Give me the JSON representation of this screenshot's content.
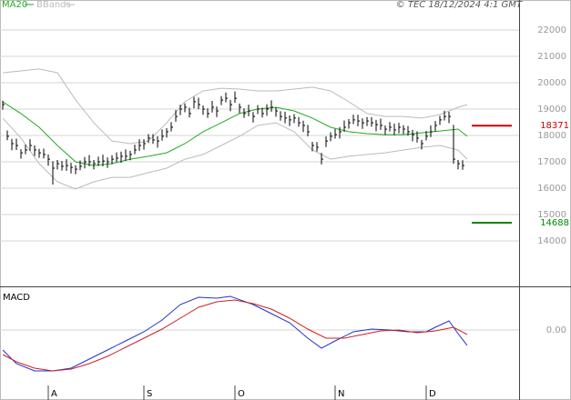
{
  "header": {
    "credit": "© TEC 18/12/2024 4:1 GMT"
  },
  "chart_data": [
    {
      "type": "ohlc",
      "color": "#000000",
      "grid": true,
      "xlim": [
        -0.6,
        113.4
      ],
      "ylim": [
        12276,
        23138
      ],
      "yticks": [
        14000,
        15000,
        16000,
        17000,
        18000,
        19000,
        20000,
        21000,
        22000
      ],
      "close": [
        19170,
        17970,
        17690,
        17620,
        17340,
        17450,
        17620,
        17450,
        17340,
        17280,
        17100,
        16760,
        16930,
        16830,
        16860,
        16790,
        16720,
        16830,
        17000,
        17000,
        16930,
        17000,
        17030,
        17000,
        17100,
        17140,
        17210,
        17210,
        17280,
        17450,
        17620,
        17690,
        17900,
        17830,
        17790,
        17970,
        18140,
        18310,
        18720,
        19000,
        19070,
        18830,
        19280,
        19170,
        19000,
        18830,
        19070,
        18930,
        19340,
        19410,
        19170,
        19410,
        19070,
        18830,
        18930,
        18720,
        19000,
        18830,
        19000,
        19070,
        18930,
        18720,
        18660,
        18590,
        18660,
        18480,
        18380,
        18140,
        17620,
        17550,
        17100,
        17790,
        17970,
        18030,
        18140,
        18310,
        18480,
        18590,
        18550,
        18480,
        18550,
        18480,
        18410,
        18380,
        18240,
        18310,
        18210,
        18310,
        18240,
        18140,
        18030,
        17900,
        17690,
        17970,
        18140,
        18380,
        18590,
        18720,
        18720,
        17100,
        16930,
        16860
      ],
      "high": [
        19320,
        18190,
        17870,
        17880,
        17480,
        17650,
        17860,
        17620,
        17490,
        17500,
        17280,
        17020,
        17070,
        17030,
        17100,
        16960,
        16870,
        17050,
        17180,
        17260,
        17070,
        17200,
        17270,
        17170,
        17250,
        17360,
        17390,
        17470,
        17420,
        17650,
        17860,
        17860,
        18050,
        18050,
        17970,
        18230,
        18280,
        18510,
        18960,
        19170,
        19220,
        19050,
        19460,
        19430,
        19140,
        19030,
        19310,
        19100,
        19490,
        19630,
        19350,
        19670,
        19210,
        19030,
        19170,
        18890,
        19150,
        19050,
        19180,
        19330,
        19070,
        18920,
        18900,
        18760,
        18810,
        18700,
        18560,
        18400,
        17760,
        17750,
        17340,
        17960,
        18120,
        18250,
        18320,
        18570,
        18620,
        18790,
        18790,
        18650,
        18700,
        18700,
        18590,
        18640,
        18380,
        18510,
        18450,
        18480,
        18390,
        18360,
        18210,
        18160,
        17830,
        18170,
        18380,
        18550,
        18740,
        18940,
        18900,
        18400,
        17070,
        17060
      ],
      "low": [
        18980,
        17820,
        17440,
        17450,
        17120,
        17290,
        17420,
        17220,
        17150,
        17130,
        16850,
        16140,
        16710,
        16670,
        16660,
        16560,
        16530,
        16680,
        16750,
        16830,
        16710,
        16840,
        16830,
        16770,
        16910,
        16990,
        16960,
        17040,
        17060,
        17290,
        17420,
        17460,
        17710,
        17680,
        17540,
        17800,
        17920,
        18150,
        18520,
        18770,
        18880,
        18680,
        19030,
        19000,
        18780,
        18670,
        18870,
        18700,
        19150,
        19260,
        18920,
        19240,
        18850,
        18670,
        18730,
        18490,
        18810,
        18680,
        18750,
        18900,
        18710,
        18560,
        18460,
        18360,
        18470,
        18330,
        18130,
        17970,
        17400,
        17390,
        16900,
        17560,
        17780,
        17880,
        17890,
        18140,
        18260,
        18430,
        18350,
        18250,
        18360,
        18330,
        18160,
        18210,
        18020,
        18150,
        18010,
        18080,
        18050,
        17990,
        17780,
        17730,
        17470,
        17810,
        17940,
        18150,
        18400,
        18570,
        18470,
        16930,
        16710,
        16700
      ],
      "series": [
        {
          "name": "MA20",
          "type": "line",
          "color": "#22aa22",
          "x": [
            0,
            4,
            8,
            12,
            16,
            20,
            24,
            28,
            32,
            36,
            40,
            44,
            48,
            52,
            56,
            60,
            64,
            68,
            72,
            76,
            80,
            84,
            88,
            92,
            96,
            100,
            102
          ],
          "values": [
            19280,
            18830,
            18310,
            17620,
            17000,
            16860,
            16930,
            17100,
            17210,
            17340,
            17690,
            18140,
            18480,
            18830,
            19000,
            19070,
            18930,
            18660,
            18310,
            18140,
            18070,
            18030,
            18030,
            18100,
            18170,
            18240,
            17970
          ]
        },
        {
          "name": "BBands",
          "type": "band",
          "color": "#bbbbbb",
          "x": [
            0,
            4,
            8,
            12,
            16,
            20,
            24,
            28,
            32,
            36,
            40,
            44,
            48,
            52,
            56,
            60,
            64,
            68,
            72,
            76,
            80,
            84,
            88,
            92,
            96,
            100,
            102
          ],
          "values": [
            20380,
            20450,
            20520,
            20380,
            19350,
            18480,
            17790,
            17690,
            17790,
            18480,
            19280,
            19690,
            19790,
            19760,
            19690,
            19690,
            19760,
            19830,
            19690,
            19280,
            18830,
            18720,
            18720,
            18660,
            18790,
            19070,
            19170
          ],
          "lower": [
            18660,
            17900,
            16930,
            16240,
            15970,
            16240,
            16410,
            16410,
            16590,
            16760,
            17100,
            17280,
            17620,
            17970,
            18380,
            18480,
            18140,
            17450,
            17100,
            17210,
            17280,
            17340,
            17450,
            17550,
            17620,
            17450,
            17100
          ]
        }
      ],
      "levels": [
        {
          "value": 18371,
          "color": "#cc0000"
        },
        {
          "value": 14688,
          "color": "#008800"
        }
      ]
    },
    {
      "type": "line",
      "title": "MACD",
      "xlim": [
        -0.6,
        113.4
      ],
      "ylim": [
        -77,
        47
      ],
      "yticks": [
        {
          "value": 0,
          "label": "0.00"
        }
      ],
      "xticks": [
        {
          "value": 10,
          "label": "A"
        },
        {
          "value": 31,
          "label": "S"
        },
        {
          "value": 51,
          "label": "O"
        },
        {
          "value": 73,
          "label": "N"
        },
        {
          "value": 93,
          "label": "D"
        }
      ],
      "series": [
        {
          "color": "#2233cc",
          "x": [
            0,
            3,
            7,
            11,
            15,
            19,
            23,
            27,
            31,
            35,
            39,
            43,
            47,
            50,
            55,
            59,
            63,
            67,
            70,
            73,
            77,
            81,
            85,
            89,
            93,
            95,
            98,
            100,
            102
          ],
          "values": [
            -22,
            -37,
            -45,
            -45,
            -42,
            -32,
            -22,
            -12,
            -2,
            11,
            28,
            36,
            35,
            37,
            28,
            18,
            8,
            -9,
            -20,
            -12,
            -2,
            1,
            0,
            -2,
            -2,
            3,
            10,
            -4,
            -17
          ]
        },
        {
          "color": "#cc2222",
          "x": [
            0,
            3,
            7,
            11,
            15,
            19,
            23,
            27,
            31,
            35,
            39,
            43,
            47,
            51,
            55,
            59,
            63,
            67,
            71,
            75,
            79,
            83,
            87,
            91,
            95,
            99,
            102
          ],
          "values": [
            -27,
            -35,
            -42,
            -45,
            -43,
            -37,
            -29,
            -19,
            -9,
            1,
            13,
            25,
            31,
            33,
            29,
            23,
            13,
            1,
            -9,
            -9,
            -5,
            -1,
            0,
            -3,
            -1,
            3,
            -5
          ]
        }
      ]
    }
  ]
}
